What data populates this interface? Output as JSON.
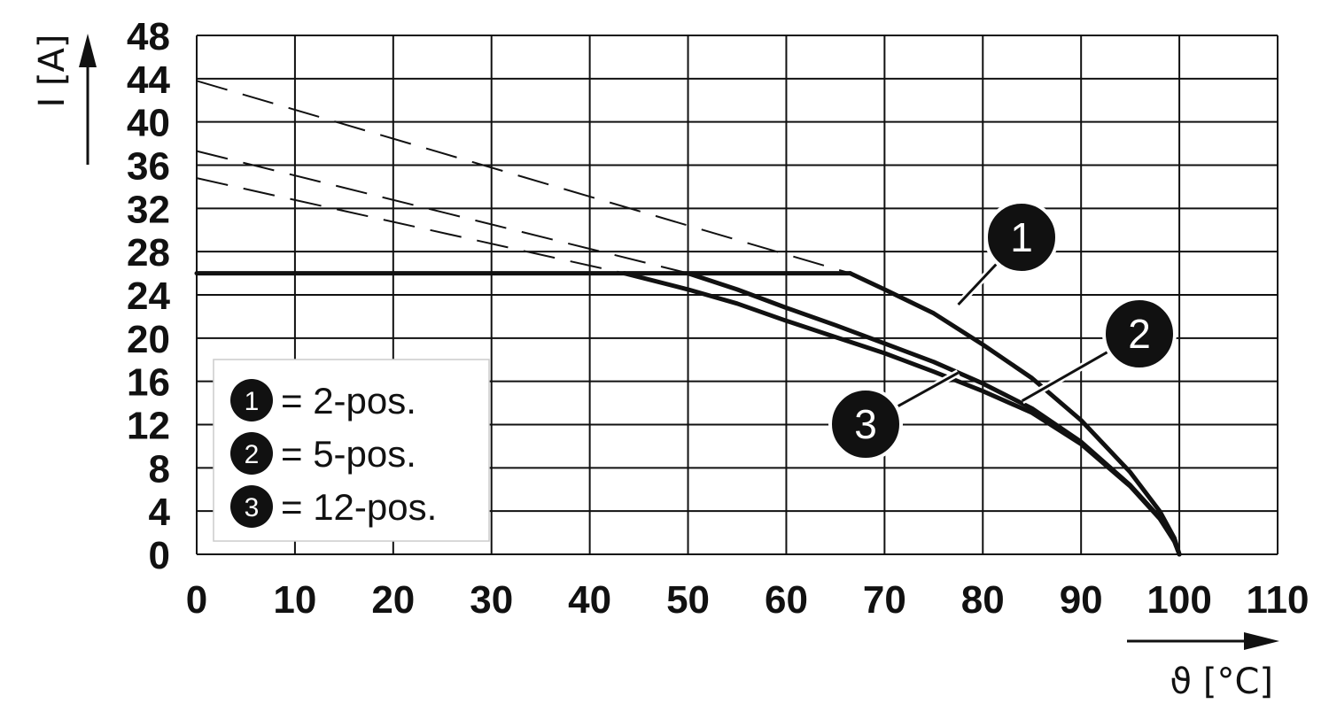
{
  "chart_data": {
    "type": "line",
    "title": "",
    "xlabel": "ϑ [°C]",
    "ylabel": "I [A]",
    "xlim": [
      0,
      110
    ],
    "ylim": [
      0,
      48
    ],
    "x_ticks": [
      "0",
      "10",
      "20",
      "30",
      "40",
      "50",
      "60",
      "70",
      "80",
      "90",
      "100",
      "110"
    ],
    "y_ticks": [
      "0",
      "4",
      "8",
      "12",
      "16",
      "20",
      "24",
      "28",
      "32",
      "36",
      "40",
      "44",
      "48"
    ],
    "grid": true,
    "legend_position": "bottom-left",
    "legend": [
      {
        "marker": "1",
        "text": "= 2-pos."
      },
      {
        "marker": "2",
        "text": "= 5-pos."
      },
      {
        "marker": "3",
        "text": "= 12-pos."
      }
    ],
    "plateau": {
      "y": 26,
      "x_start": 0,
      "x_end": 66.5
    },
    "series": [
      {
        "marker": "1",
        "dashed_extension": [
          [
            0,
            43.8
          ],
          [
            66.5,
            26
          ]
        ],
        "curve": [
          [
            66.5,
            26
          ],
          [
            70,
            24.5
          ],
          [
            75,
            22.3
          ],
          [
            80,
            19.4
          ],
          [
            85,
            16.3
          ],
          [
            90,
            12.4
          ],
          [
            95,
            7.6
          ],
          [
            98,
            4.0
          ],
          [
            99.5,
            1.5
          ],
          [
            100,
            0
          ]
        ]
      },
      {
        "marker": "2",
        "dashed_extension": [
          [
            0,
            37.3
          ],
          [
            50,
            26
          ]
        ],
        "curve": [
          [
            50,
            26
          ],
          [
            55,
            24.5
          ],
          [
            60,
            22.8
          ],
          [
            65,
            21.2
          ],
          [
            70,
            19.5
          ],
          [
            75,
            17.8
          ],
          [
            80,
            15.8
          ],
          [
            85,
            13.5
          ],
          [
            90,
            10.4
          ],
          [
            95,
            6.4
          ],
          [
            98,
            3.4
          ],
          [
            99.5,
            1.2
          ],
          [
            100,
            0
          ]
        ]
      },
      {
        "marker": "3",
        "dashed_extension": [
          [
            0,
            34.8
          ],
          [
            43.5,
            26
          ]
        ],
        "curve": [
          [
            43.5,
            26
          ],
          [
            50,
            24.5
          ],
          [
            55,
            23.2
          ],
          [
            60,
            21.6
          ],
          [
            65,
            20.1
          ],
          [
            70,
            18.6
          ],
          [
            75,
            16.9
          ],
          [
            80,
            15.1
          ],
          [
            85,
            13.1
          ],
          [
            90,
            10.2
          ],
          [
            95,
            6.3
          ],
          [
            98,
            3.3
          ],
          [
            99.5,
            1.2
          ],
          [
            100,
            0
          ]
        ]
      }
    ],
    "callouts": [
      {
        "marker": "1",
        "point": [
          77.5,
          23.1
        ]
      },
      {
        "marker": "2",
        "point": [
          84,
          14.2
        ]
      },
      {
        "marker": "3",
        "point": [
          77.5,
          16.8
        ]
      }
    ],
    "colors": {
      "line": "#111111",
      "grid": "#111111",
      "badge": "#111111",
      "badge_text": "#ffffff"
    }
  }
}
